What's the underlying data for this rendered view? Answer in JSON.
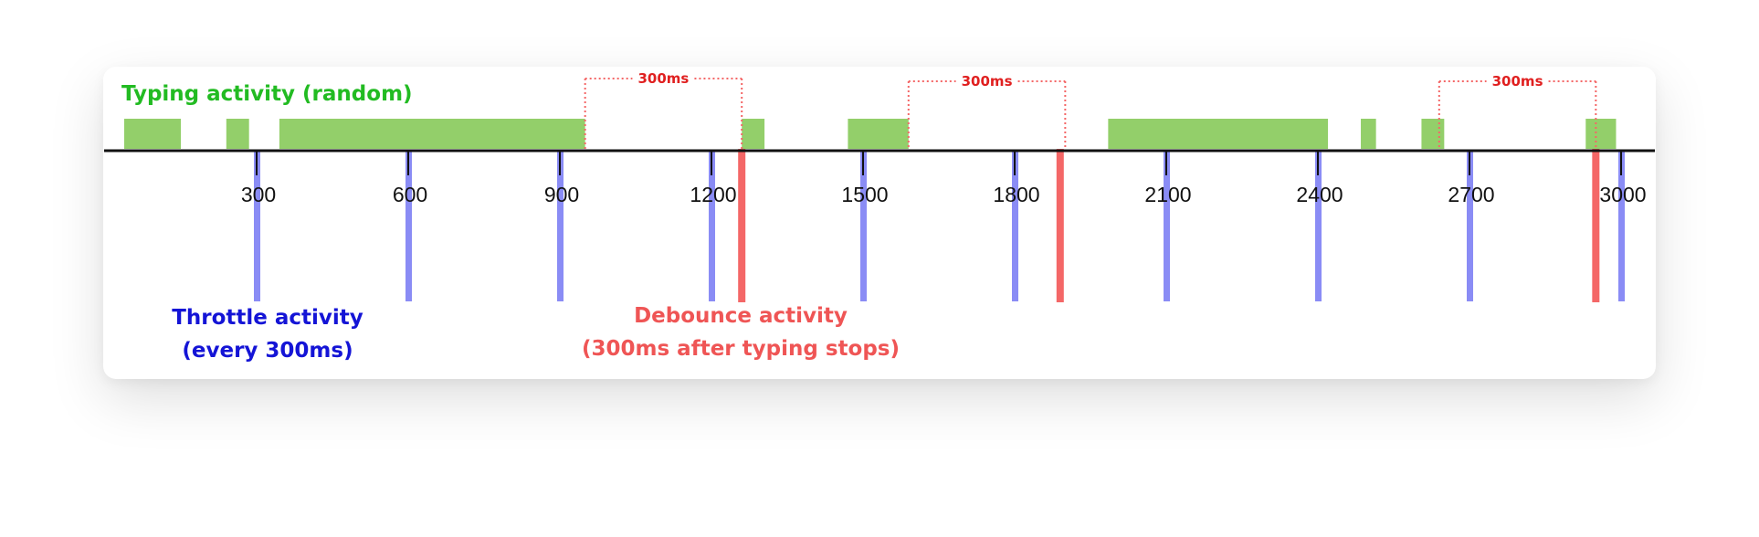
{
  "labels": {
    "typing": "Typing activity (random)",
    "throttle_line1": "Throttle activity",
    "throttle_line2": "(every 300ms)",
    "debounce_line1": "Debounce activity",
    "debounce_line2": "(300ms after typing stops)"
  },
  "colors": {
    "typing": "#93cf6a",
    "typing_text": "#22bb22",
    "throttle": "#8a8cf5",
    "throttle_text": "#1414d6",
    "debounce": "#f46767",
    "debounce_text": "#ef5555",
    "axis": "#111111"
  },
  "timeline": {
    "ticks": [
      300,
      600,
      900,
      1200,
      1500,
      1800,
      2100,
      2400,
      2700,
      3000
    ],
    "tick_labels": [
      "300",
      "600",
      "900",
      "1200",
      "1500",
      "1800",
      "2100",
      "2400",
      "2700",
      "3000"
    ],
    "typing_segments": [
      [
        0,
        150
      ],
      [
        240,
        285
      ],
      [
        345,
        950
      ],
      [
        1260,
        1305
      ],
      [
        1470,
        1590
      ],
      [
        1985,
        2420
      ],
      [
        2485,
        2515
      ],
      [
        2605,
        2650
      ],
      [
        2930,
        2990
      ]
    ],
    "throttle_events": [
      300,
      600,
      900,
      1200,
      1500,
      1800,
      2100,
      2400,
      2700,
      3000
    ],
    "debounce_events": [
      1260,
      1890,
      2950
    ],
    "debounce_gaps": [
      {
        "from": 950,
        "to": 1260,
        "label": "300ms"
      },
      {
        "from": 1590,
        "to": 1900,
        "label": "300ms"
      },
      {
        "from": 2640,
        "to": 2950,
        "label": "300ms"
      }
    ]
  }
}
